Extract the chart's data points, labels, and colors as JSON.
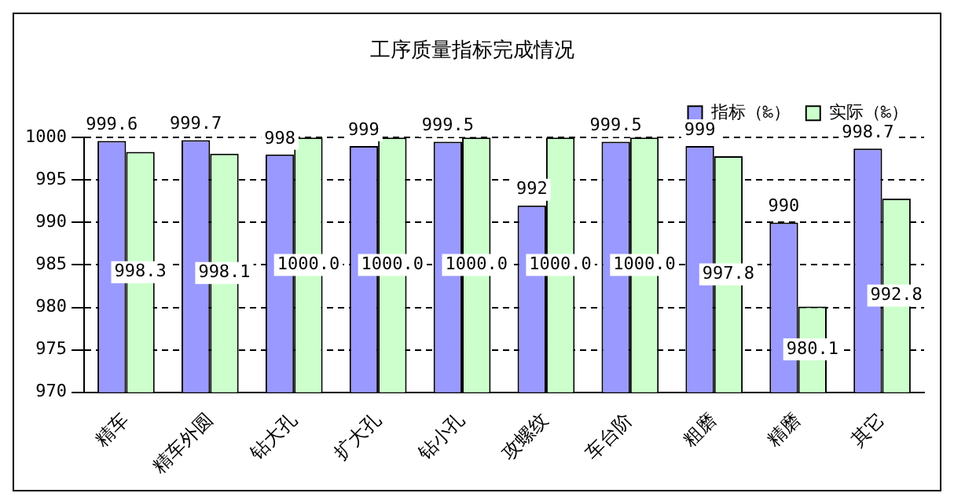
{
  "chart_data": {
    "type": "bar",
    "title": "工序质量指标完成情况",
    "categories": [
      "精车",
      "精车外圆",
      "钻大孔",
      "扩大孔",
      "钻小孔",
      "攻螺纹",
      "车台阶",
      "粗磨",
      "精磨",
      "其它"
    ],
    "series": [
      {
        "name": "指标（‰）",
        "color": "#9999ff",
        "values": [
          999.6,
          999.7,
          998,
          999,
          999.5,
          992,
          999.5,
          999,
          990,
          998.7
        ],
        "value_labels": [
          "999.6",
          "999.7",
          "998",
          "999",
          "999.5",
          "992",
          "999.5",
          "999",
          "990",
          "998.7"
        ]
      },
      {
        "name": "实际（‰）",
        "color": "#ccffcc",
        "values": [
          998.3,
          998.1,
          1000.0,
          1000.0,
          1000.0,
          1000.0,
          1000.0,
          997.8,
          980.1,
          992.8
        ],
        "value_labels": [
          "998.3",
          "998.1",
          "1000.0",
          "1000.0",
          "1000.0",
          "1000.0",
          "1000.0",
          "997.8",
          "980.1",
          "992.8"
        ]
      }
    ],
    "ylim": [
      970,
      1000
    ],
    "yticks": [
      970,
      975,
      980,
      985,
      990,
      995,
      1000
    ],
    "grid": "y",
    "line_style": "dashed",
    "legend": "top right"
  }
}
